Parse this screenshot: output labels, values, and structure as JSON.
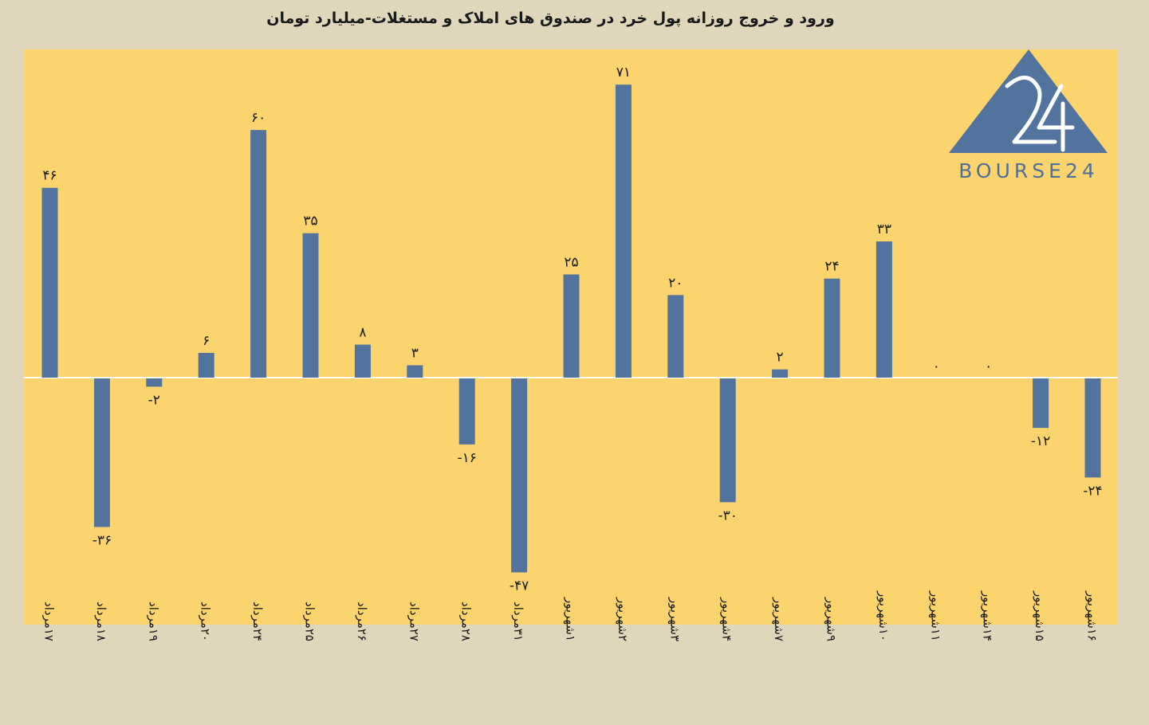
{
  "title": "ورود و خروج روزانه پول خرد در صندوق های املاک و مستغلات-میلیارد تومان",
  "logo": {
    "text": "BOURSE24",
    "number": "24",
    "color": "#4f6f98"
  },
  "colors": {
    "bar": "#52739e",
    "plot_bg": "#fbd46e",
    "page_bg": "#e0d6bb",
    "zero_line": "#ffffff"
  },
  "chart_data": {
    "type": "bar",
    "categories": [
      "۱۷مرداد",
      "۱۸مرداد",
      "۱۹مرداد",
      "۲۰مرداد",
      "۲۴مرداد",
      "۲۵مرداد",
      "۲۶مرداد",
      "۲۷مرداد",
      "۲۸مرداد",
      "۳۱مرداد",
      "۱شهریور",
      "۲شهریور",
      "۳شهریور",
      "۴شهریور",
      "۷شهریور",
      "۹شهریور",
      "۱۰شهریور",
      "۱۱شهریور",
      "۱۴شهریور",
      "۱۵شهریور",
      "۱۶شهریور"
    ],
    "values": [
      46,
      -36,
      -2,
      6,
      60,
      35,
      8,
      3,
      -16,
      -47,
      25,
      71,
      20,
      -30,
      2,
      24,
      33,
      0,
      0,
      -12,
      -24
    ],
    "value_labels": [
      "۴۶",
      "-۳۶",
      "-۲",
      "۶",
      "۶۰",
      "۳۵",
      "۸",
      "۳",
      "-۱۶",
      "-۴۷",
      "۲۵",
      "۷۱",
      "۲۰",
      "-۳۰",
      "۲",
      "۲۴",
      "۳۳",
      "۰",
      "۰",
      "-۱۲",
      "-۲۴"
    ],
    "ylim": [
      -60,
      80
    ],
    "xlabel": "",
    "ylabel": "",
    "grid": false,
    "legend": "none"
  }
}
